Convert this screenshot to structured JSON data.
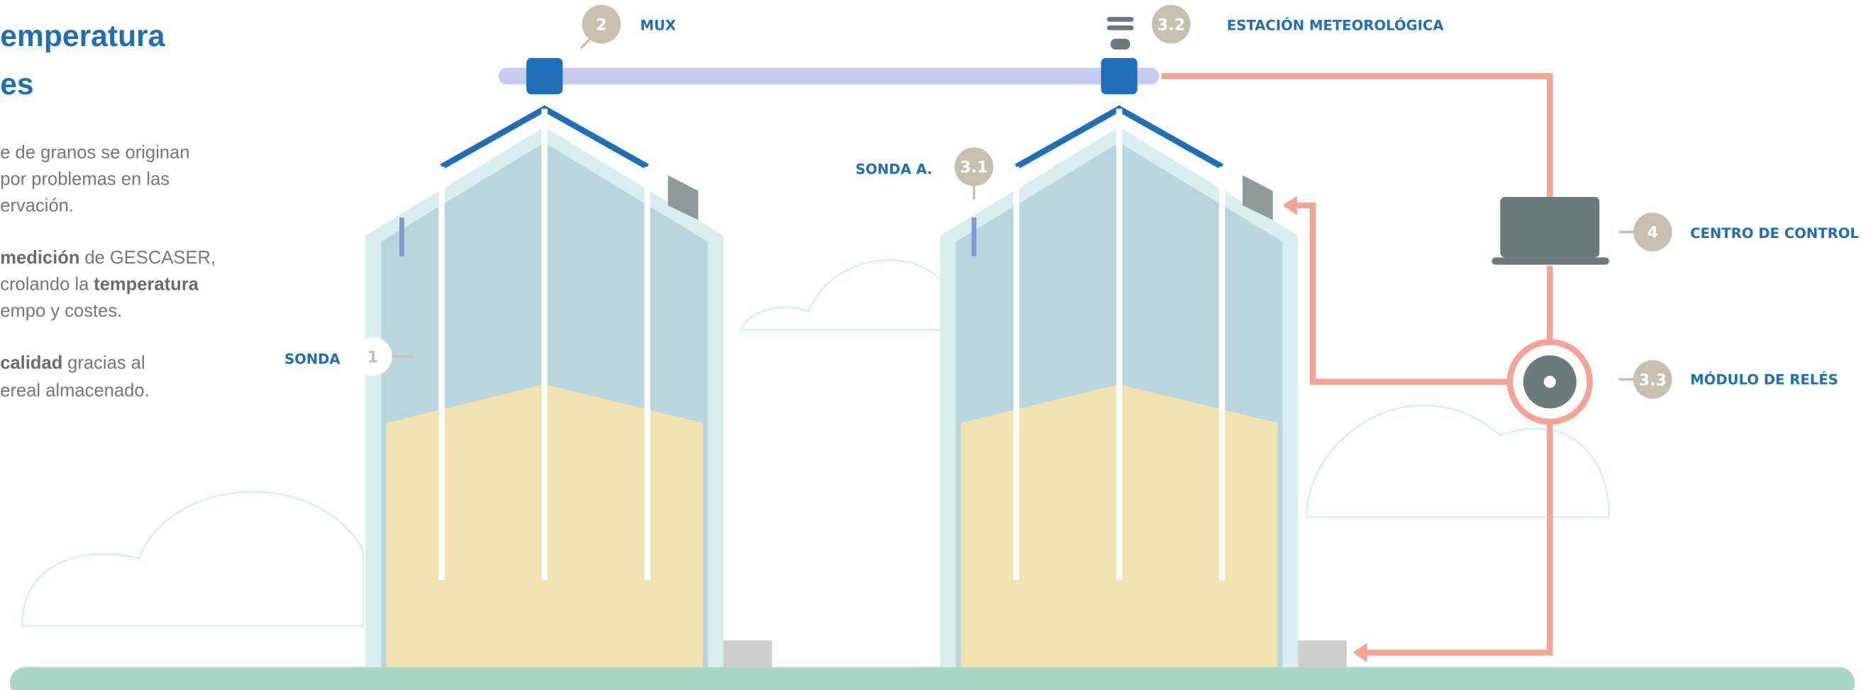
{
  "header": {
    "title": [
      "emperatura",
      "es"
    ]
  },
  "intro": {
    "lines": [
      [
        "e de granos se originan"
      ],
      [
        "por problemas en las"
      ],
      [
        "ervación."
      ],
      [
        "medición",
        "de GESCASER,"
      ],
      [
        "crolando la",
        "temperatura"
      ],
      [
        "empo y costes."
      ],
      [
        "calidad",
        "gracias al"
      ],
      [
        "ereal almacenado."
      ]
    ]
  },
  "labels": {
    "mux": {
      "number": "2",
      "text": "MUX"
    },
    "weather": {
      "number": "3.2",
      "text": "ESTACIÓN METEOROLÓGICA"
    },
    "probe_a": {
      "number": "3.1",
      "text": "SONDA A."
    },
    "control": {
      "number": "4",
      "text": "CENTRO DE CONTROL"
    },
    "relays": {
      "number": "3.3",
      "text": "MÓDULO DE RELÉS"
    },
    "probe": {
      "number": "1",
      "text": "SONDA"
    }
  }
}
